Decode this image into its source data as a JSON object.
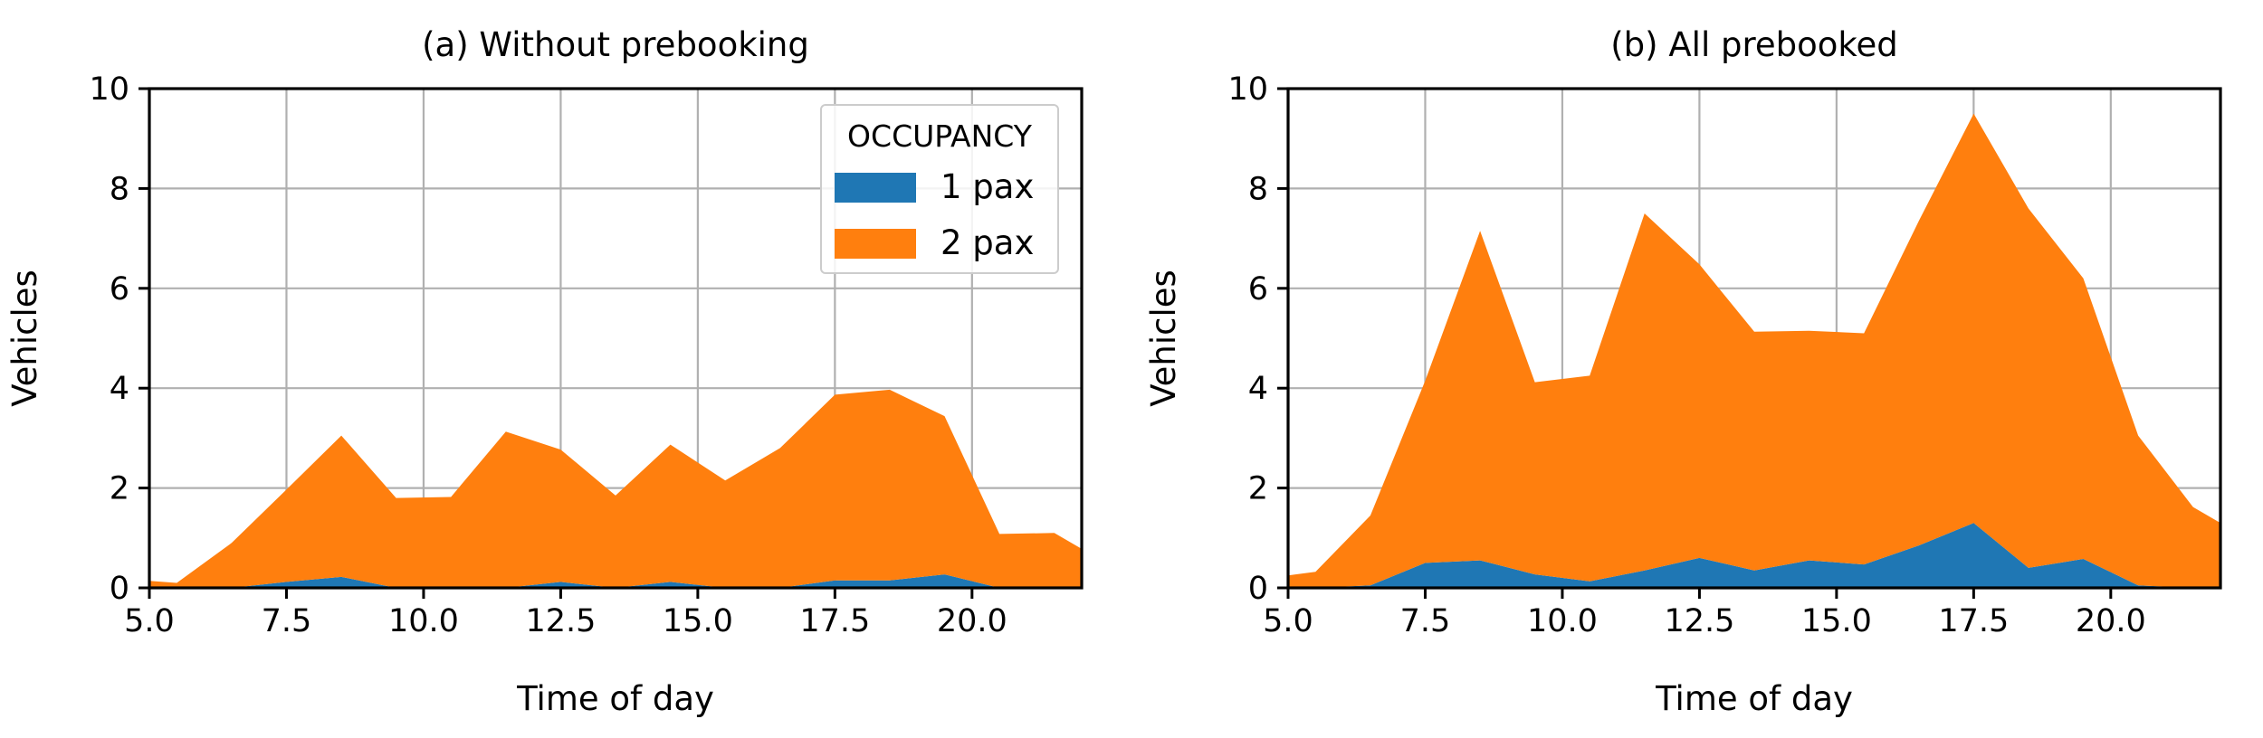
{
  "colors": {
    "series_1pax": "#1f77b4",
    "series_2pax": "#ff7f0e",
    "grid": "#b0b0b0",
    "axes": "#000000"
  },
  "legend": {
    "title": "OCCUPANCY",
    "location": "top-right",
    "in_panel": 0,
    "entries": [
      "1 pax",
      "2 pax"
    ]
  },
  "chart_data": [
    {
      "type": "area",
      "stacked": true,
      "title": "(a) Without prebooking",
      "xlabel": "Time of day",
      "ylabel": "Vehicles",
      "xlim": [
        5.0,
        22.0
      ],
      "ylim": [
        0,
        10
      ],
      "xticks": [
        "5.0",
        "7.5",
        "10.0",
        "12.5",
        "15.0",
        "17.5",
        "20.0"
      ],
      "yticks": [
        "0",
        "2",
        "4",
        "6",
        "8",
        "10"
      ],
      "grid": true,
      "x": [
        5.0,
        5.5,
        6.5,
        7.5,
        8.5,
        9.5,
        10.5,
        11.5,
        12.5,
        13.5,
        14.5,
        15.5,
        16.5,
        17.5,
        18.5,
        19.5,
        20.5,
        21.5,
        22.0
      ],
      "series": [
        {
          "name": "1 pax",
          "values": [
            0.0,
            0.0,
            0.0,
            0.12,
            0.22,
            0.0,
            0.0,
            0.0,
            0.12,
            0.0,
            0.12,
            0.0,
            0.0,
            0.15,
            0.15,
            0.27,
            0.0,
            0.0,
            0.0
          ]
        },
        {
          "name": "2 pax",
          "values": [
            0.14,
            0.1,
            0.9,
            1.85,
            2.83,
            1.8,
            1.82,
            3.13,
            2.65,
            1.85,
            2.75,
            2.15,
            2.8,
            3.72,
            3.82,
            3.17,
            1.08,
            1.1,
            0.78
          ]
        }
      ]
    },
    {
      "type": "area",
      "stacked": true,
      "title": "(b) All prebooked",
      "xlabel": "Time of day",
      "ylabel": "Vehicles",
      "xlim": [
        5.0,
        22.0
      ],
      "ylim": [
        0,
        10
      ],
      "xticks": [
        "5.0",
        "7.5",
        "10.0",
        "12.5",
        "15.0",
        "17.5",
        "20.0"
      ],
      "yticks": [
        "0",
        "2",
        "4",
        "6",
        "8",
        "10"
      ],
      "grid": true,
      "x": [
        5.0,
        5.5,
        6.5,
        7.5,
        8.5,
        9.5,
        10.5,
        11.5,
        12.5,
        13.5,
        14.5,
        15.5,
        16.5,
        17.5,
        18.5,
        19.5,
        20.5,
        21.5,
        22.0
      ],
      "series": [
        {
          "name": "1 pax",
          "values": [
            0.0,
            0.0,
            0.05,
            0.5,
            0.55,
            0.27,
            0.13,
            0.35,
            0.6,
            0.35,
            0.55,
            0.47,
            0.85,
            1.3,
            0.4,
            0.58,
            0.05,
            0.0,
            0.0
          ]
        },
        {
          "name": "2 pax",
          "values": [
            0.25,
            0.32,
            1.4,
            3.65,
            6.6,
            3.85,
            4.12,
            7.15,
            5.88,
            4.78,
            4.6,
            4.63,
            6.5,
            8.2,
            7.2,
            5.62,
            3.0,
            1.62,
            1.3
          ]
        }
      ]
    }
  ]
}
